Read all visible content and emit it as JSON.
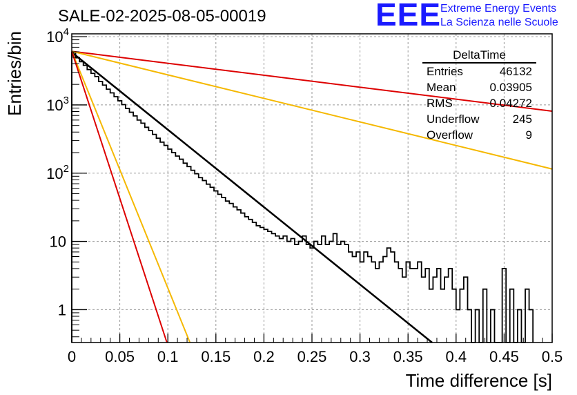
{
  "title": "SALE-02-2025-08-05-00019",
  "logo": {
    "mark": "EEE",
    "line1": "Extreme Energy Events",
    "line2": "La Scienza nelle Scuole",
    "color": "#1a1aff"
  },
  "stats_box": {
    "title": "DeltaTime",
    "rows": [
      {
        "label": "Entries",
        "value": "46132"
      },
      {
        "label": "Mean",
        "value": "0.03905"
      },
      {
        "label": "RMS",
        "value": "0.04272"
      },
      {
        "label": "Underflow",
        "value": "245"
      },
      {
        "label": "Overflow",
        "value": "9"
      }
    ]
  },
  "chart_data": {
    "type": "line",
    "xlabel": "Time difference [s]",
    "ylabel": "Entries/bin",
    "xlim": [
      0,
      0.5
    ],
    "ylim": [
      0.33,
      11000
    ],
    "yscale": "log",
    "grid": true,
    "x_ticks": [
      "0",
      "0.05",
      "0.1",
      "0.15",
      "0.2",
      "0.25",
      "0.3",
      "0.35",
      "0.4",
      "0.45",
      "0.5"
    ],
    "y_ticks": [
      {
        "value": 1,
        "label": "1"
      },
      {
        "value": 10,
        "label": "10"
      },
      {
        "value": 100,
        "label": "10^2"
      },
      {
        "value": 1000,
        "label": "10^3"
      },
      {
        "value": 10000,
        "label": "10^4"
      }
    ],
    "histogram": {
      "color": "#000000",
      "bin_width": 0.004,
      "x_start": 0,
      "values": [
        5900,
        4900,
        4300,
        3800,
        3300,
        2900,
        2600,
        2200,
        1950,
        1700,
        1500,
        1320,
        1150,
        1010,
        890,
        780,
        690,
        600,
        540,
        470,
        420,
        370,
        325,
        285,
        255,
        225,
        200,
        178,
        160,
        140,
        125,
        110,
        98,
        86,
        78,
        69,
        62,
        55,
        49,
        44,
        39,
        36,
        32,
        29,
        26,
        23,
        21,
        19,
        17,
        16,
        15,
        14,
        13,
        12,
        11,
        12,
        10,
        11,
        9,
        10,
        12,
        9,
        8,
        10,
        9,
        12,
        9,
        10,
        13,
        9,
        10,
        9,
        7,
        6,
        7,
        5,
        7,
        6,
        5,
        4,
        5,
        6,
        8,
        7,
        5,
        4,
        3,
        5,
        4,
        4,
        5,
        3,
        4,
        2,
        3,
        4,
        2,
        3,
        4,
        2,
        1,
        2,
        3,
        1,
        0,
        1,
        0,
        2,
        0,
        1,
        0,
        0,
        4,
        0,
        2,
        0,
        1,
        0,
        2,
        1
      ]
    },
    "series": [
      {
        "color": "#000000",
        "x": [
          0,
          0.375
        ],
        "y": [
          5900,
          0.33
        ]
      },
      {
        "color": "#dd0000",
        "x": [
          0,
          0.5
        ],
        "y": [
          6100,
          810
        ]
      },
      {
        "color": "#f5b800",
        "x": [
          0,
          0.5
        ],
        "y": [
          6100,
          115
        ]
      },
      {
        "color": "#f5b800",
        "x": [
          0,
          0.123
        ],
        "y": [
          6100,
          0.33
        ]
      },
      {
        "color": "#dd0000",
        "x": [
          0,
          0.099
        ],
        "y": [
          6100,
          0.33
        ]
      }
    ]
  }
}
